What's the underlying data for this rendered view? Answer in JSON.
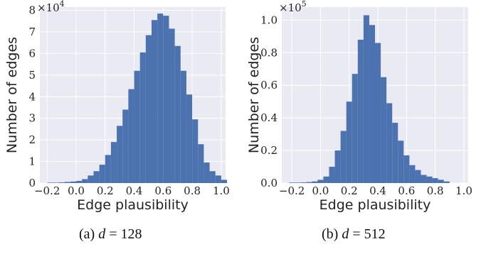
{
  "chart_data": [
    {
      "type": "bar",
      "subplot_label": "(a)",
      "caption_var": "d",
      "caption_eq": "=",
      "caption_value": "128",
      "xlabel": "Edge plausibility",
      "ylabel": "Number of edges",
      "scale_base": "×10",
      "scale_exp": "4",
      "xlim": [
        -0.25,
        1.03
      ],
      "ylim": [
        0,
        8.15
      ],
      "x_ticks": [
        "−0.2",
        "0.0",
        "0.2",
        "0.4",
        "0.6",
        "0.8",
        "1.0"
      ],
      "x_tick_values": [
        -0.2,
        0.0,
        0.2,
        0.4,
        0.6,
        0.8,
        1.0
      ],
      "y_ticks": [
        "0",
        "1",
        "2",
        "3",
        "4",
        "5",
        "6",
        "7",
        "8"
      ],
      "y_tick_values": [
        0,
        1,
        2,
        3,
        4,
        5,
        6,
        7,
        8
      ],
      "bin_start": -0.2,
      "bin_width": 0.04,
      "values": [
        0.02,
        0.02,
        0.03,
        0.05,
        0.07,
        0.1,
        0.18,
        0.35,
        0.55,
        0.85,
        1.3,
        1.9,
        2.65,
        3.4,
        4.35,
        5.2,
        6.05,
        6.85,
        7.55,
        7.85,
        7.75,
        7.15,
        6.35,
        5.2,
        4.1,
        2.95,
        1.8,
        0.95,
        0.55,
        0.35,
        0.15
      ],
      "bar_color": "#4c72b0",
      "plot_bg": "#eaeaf2",
      "grid": true
    },
    {
      "type": "bar",
      "subplot_label": "(b)",
      "caption_var": "d",
      "caption_eq": "=",
      "caption_value": "512",
      "xlabel": "Edge plausibility",
      "ylabel": "Number of edges",
      "scale_base": "×10",
      "scale_exp": "5",
      "xlim": [
        -0.27,
        1.03
      ],
      "ylim": [
        0,
        1.08
      ],
      "x_ticks": [
        "−0.2",
        "0.0",
        "0.2",
        "0.4",
        "0.6",
        "0.8",
        "1.0"
      ],
      "x_tick_values": [
        -0.2,
        0.0,
        0.2,
        0.4,
        0.6,
        0.8,
        1.0
      ],
      "y_ticks": [
        "0.0",
        "0.2",
        "0.4",
        "0.6",
        "0.8",
        "1.0"
      ],
      "y_tick_values": [
        0,
        0.2,
        0.4,
        0.6,
        0.8,
        1.0
      ],
      "bin_start": -0.22,
      "bin_width": 0.04,
      "values": [
        0.003,
        0.003,
        0.004,
        0.006,
        0.01,
        0.02,
        0.04,
        0.1,
        0.2,
        0.32,
        0.5,
        0.67,
        0.88,
        1.03,
        0.97,
        0.86,
        0.65,
        0.49,
        0.37,
        0.26,
        0.17,
        0.11,
        0.08,
        0.05,
        0.04,
        0.03,
        0.02,
        0.01
      ],
      "bar_color": "#4c72b0",
      "plot_bg": "#eaeaf2",
      "grid": true
    }
  ]
}
